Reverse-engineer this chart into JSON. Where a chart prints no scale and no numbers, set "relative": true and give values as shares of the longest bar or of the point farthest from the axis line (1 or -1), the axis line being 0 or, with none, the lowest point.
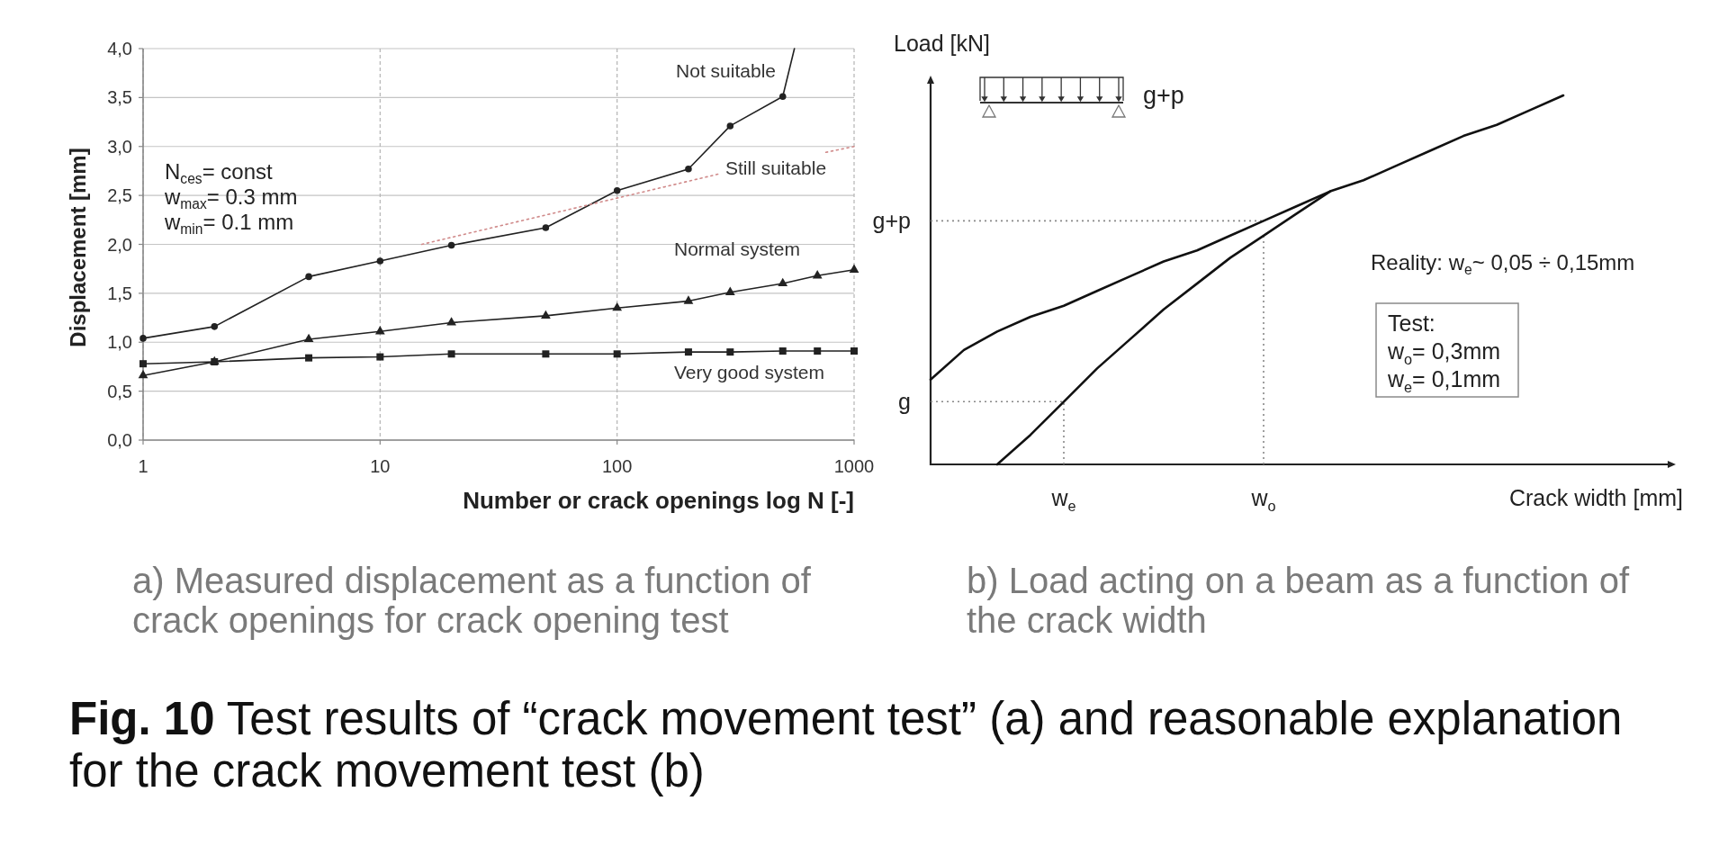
{
  "chart_data": [
    {
      "type": "line",
      "xlabel": "Number or crack openings log N [-]",
      "ylabel": "Displacement [mm]",
      "log": "x",
      "xlim": [
        1,
        1000
      ],
      "xticks": [
        1,
        10,
        100,
        1000
      ],
      "ylim": [
        0,
        4
      ],
      "yticks": [
        {
          "value": 0,
          "label": "0,0"
        },
        {
          "value": 0.5,
          "label": "0,5"
        },
        {
          "value": 1,
          "label": "1,0"
        },
        {
          "value": 1.5,
          "label": "1,5"
        },
        {
          "value": 2,
          "label": "2,0"
        },
        {
          "value": 2.5,
          "label": "2,5"
        },
        {
          "value": 3,
          "label": "3,0"
        },
        {
          "value": 3.5,
          "label": "3,5"
        },
        {
          "value": 4,
          "label": "4,0"
        }
      ],
      "grid": true,
      "series": [
        {
          "name": "Not suitable",
          "color": "#222222",
          "marker": "circle",
          "x": [
            1,
            2,
            5,
            10,
            20,
            50,
            100,
            200,
            300,
            500
          ],
          "values": [
            1.04,
            1.16,
            1.67,
            1.83,
            1.99,
            2.17,
            2.55,
            2.77,
            3.21,
            3.51
          ]
        },
        {
          "color": "#222222",
          "marker": "none",
          "x": [
            500,
            560
          ],
          "values": [
            3.51,
            4.0
          ]
        },
        {
          "name": "Still suitable",
          "color": "#d08a8a",
          "marker": "none",
          "line_style": "dotted",
          "x": [
            15,
            270,
            500,
            760,
            1000
          ],
          "values": [
            2.0,
            2.72,
            null,
            2.94,
            3.0
          ]
        },
        {
          "name": "Normal system",
          "color": "#222222",
          "marker": "triangle",
          "x": [
            1,
            2,
            5,
            10,
            20,
            50,
            100,
            200,
            300,
            500,
            700,
            1000
          ],
          "values": [
            0.66,
            0.8,
            1.03,
            1.11,
            1.2,
            1.27,
            1.35,
            1.42,
            1.51,
            1.6,
            1.68,
            1.74
          ]
        },
        {
          "name": "Very good system",
          "color": "#222222",
          "marker": "square",
          "x": [
            1,
            2,
            5,
            10,
            20,
            50,
            100,
            200,
            300,
            500,
            700,
            1000
          ],
          "values": [
            0.78,
            0.8,
            0.84,
            0.85,
            0.88,
            0.88,
            0.88,
            0.9,
            0.9,
            0.91,
            0.91,
            0.91
          ]
        }
      ],
      "annotations": [
        "N$_{ces}$= const",
        "w$_{max}$= 0.3 mm",
        "w$_{min}$= 0.1 mm",
        "a) Measured displacement as a function of crack openings for crack opening test"
      ]
    },
    {
      "type": "line",
      "relative": true,
      "xlabel": "Crack width [mm]",
      "ylabel": "Load [kN]",
      "categories": [
        null,
        null,
        null,
        null,
        "w$_{e}$",
        null,
        null,
        null,
        null,
        null,
        "w$_{o}$",
        null,
        null,
        null,
        null,
        null,
        null,
        null,
        null,
        null
      ],
      "series": [
        {
          "color": "#111111",
          "values": [
            0.23,
            0.31,
            0.36,
            0.4,
            0.43,
            0.47,
            0.51,
            0.55,
            0.58,
            0.62,
            0.66,
            0.7,
            0.74,
            0.77,
            0.81,
            0.85,
            0.89,
            0.92,
            0.96,
            1
          ]
        },
        {
          "color": "#111111",
          "values": [
            null,
            null,
            0,
            0.08,
            0.17,
            0.26,
            0.34,
            0.42,
            0.49,
            0.56,
            0.62,
            0.68,
            0.74,
            null,
            null,
            null,
            null,
            null,
            null,
            null
          ]
        }
      ],
      "ref_lines": [
        {
          "axis": "y",
          "value": 0.66,
          "label": "g+p",
          "color": "#888888",
          "line_style": "dotted"
        },
        {
          "axis": "y",
          "value": 0.17,
          "label": "g",
          "color": "#888888",
          "line_style": "dotted"
        },
        {
          "axis": "x",
          "value": "w$_{e}$",
          "color": "#888888",
          "line_style": "dotted"
        },
        {
          "axis": "x",
          "value": "w$_{o}$",
          "color": "#888888",
          "line_style": "dotted"
        }
      ],
      "annotations": [
        "g+p",
        "Reality: w$_{e}$~ 0,05 ÷ 0,15mm",
        "Test:",
        "w$_{o}$= 0,3mm",
        "w$_{e}$= 0,1mm",
        "b) Load acting on a beam as a function of the crack width",
        "Fig. 10 Test results of “crack movement test” (a) and reasonable explanation for the crack movement test (b)"
      ]
    }
  ]
}
